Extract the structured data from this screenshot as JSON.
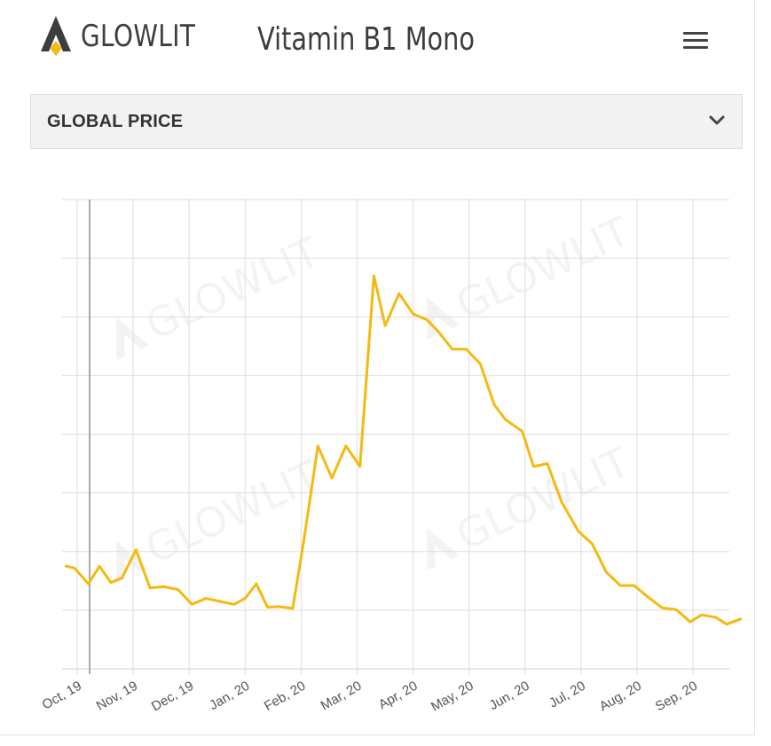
{
  "header": {
    "brand": "GLOWLIT",
    "title": "Vitamin B1 Mono",
    "menu_icon": "hamburger-menu-icon"
  },
  "dropdown": {
    "label": "GLOBAL PRICE",
    "icon": "chevron-down-icon"
  },
  "watermark": "GLOWLIT",
  "colors": {
    "line": "#f5b90f",
    "logo_gold": "#f5b90f",
    "logo_dark": "#3d3d3d",
    "grid": "#dddddd"
  },
  "chart_data": {
    "type": "line",
    "title": "",
    "xlabel": "",
    "ylabel": "",
    "grid": true,
    "legend": "none",
    "x_tick_labels": [
      "Oct, 19",
      "Nov, 19",
      "Dec, 19",
      "Jan, 20",
      "Feb, 20",
      "Mar, 20",
      "Apr, 20",
      "May, 20",
      "Jun, 20",
      "Jul, 20",
      "Aug, 20",
      "Sep, 20"
    ],
    "x_range": [
      -0.25,
      11.5
    ],
    "ylim": [
      0,
      8
    ],
    "series": [
      {
        "values": [
          [
            -0.2,
            1.75
          ],
          [
            -0.05,
            1.72
          ],
          [
            0.2,
            1.45
          ],
          [
            0.4,
            1.75
          ],
          [
            0.6,
            1.47
          ],
          [
            0.8,
            1.55
          ],
          [
            1.05,
            2.03
          ],
          [
            1.3,
            1.38
          ],
          [
            1.55,
            1.4
          ],
          [
            1.8,
            1.35
          ],
          [
            2.05,
            1.1
          ],
          [
            2.3,
            1.2
          ],
          [
            2.55,
            1.15
          ],
          [
            2.8,
            1.1
          ],
          [
            3.0,
            1.2
          ],
          [
            3.2,
            1.45
          ],
          [
            3.4,
            1.05
          ],
          [
            3.6,
            1.06
          ],
          [
            3.85,
            1.03
          ],
          [
            4.05,
            2.2
          ],
          [
            4.3,
            3.8
          ],
          [
            4.55,
            3.25
          ],
          [
            4.8,
            3.8
          ],
          [
            5.05,
            3.45
          ],
          [
            5.3,
            6.7
          ],
          [
            5.5,
            5.85
          ],
          [
            5.75,
            6.4
          ],
          [
            6.0,
            6.05
          ],
          [
            6.25,
            5.95
          ],
          [
            6.45,
            5.75
          ],
          [
            6.7,
            5.45
          ],
          [
            6.95,
            5.45
          ],
          [
            7.2,
            5.2
          ],
          [
            7.45,
            4.5
          ],
          [
            7.65,
            4.25
          ],
          [
            7.95,
            4.05
          ],
          [
            8.15,
            3.45
          ],
          [
            8.4,
            3.5
          ],
          [
            8.65,
            2.85
          ],
          [
            8.95,
            2.35
          ],
          [
            9.2,
            2.13
          ],
          [
            9.45,
            1.65
          ],
          [
            9.7,
            1.42
          ],
          [
            9.95,
            1.42
          ],
          [
            10.2,
            1.22
          ],
          [
            10.45,
            1.04
          ],
          [
            10.7,
            1.01
          ],
          [
            10.95,
            0.8
          ],
          [
            11.15,
            0.92
          ],
          [
            11.4,
            0.88
          ],
          [
            11.6,
            0.76
          ],
          [
            11.85,
            0.85
          ]
        ]
      }
    ]
  }
}
